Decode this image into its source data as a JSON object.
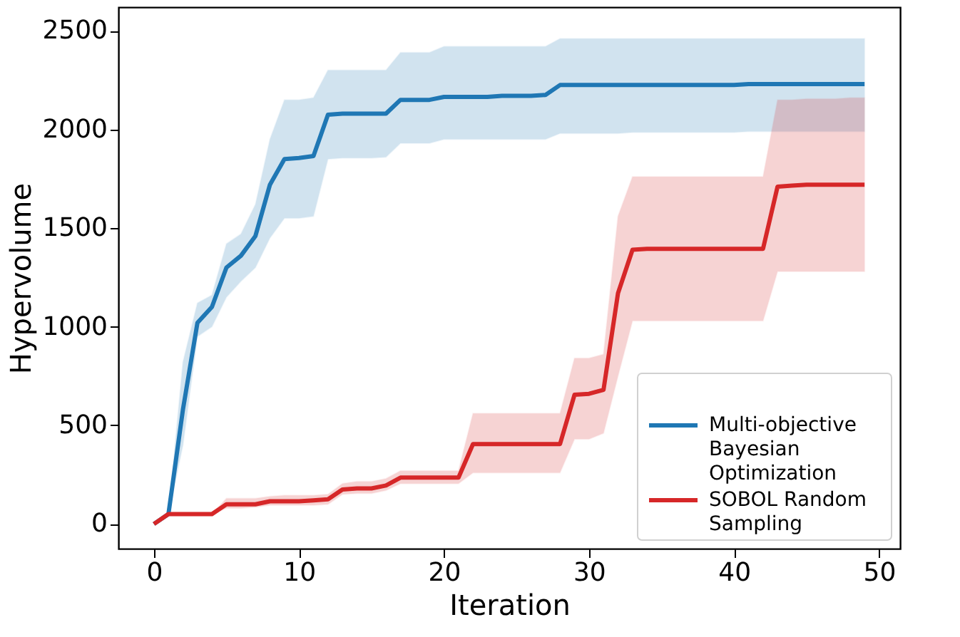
{
  "chart_data": {
    "type": "line",
    "xlabel": "Iteration",
    "ylabel": "Hypervolume",
    "x": [
      0,
      1,
      2,
      3,
      4,
      5,
      6,
      7,
      8,
      9,
      10,
      11,
      12,
      13,
      14,
      15,
      16,
      17,
      18,
      19,
      20,
      21,
      22,
      23,
      24,
      25,
      26,
      27,
      28,
      29,
      30,
      31,
      32,
      33,
      34,
      35,
      36,
      37,
      38,
      39,
      40,
      41,
      42,
      43,
      44,
      45,
      46,
      47,
      48,
      49
    ],
    "series": [
      {
        "name": "Multi-objective Bayesian Optimization",
        "color": "#1f77b4",
        "values": [
          0,
          50,
          580,
          1020,
          1100,
          1300,
          1360,
          1460,
          1720,
          1850,
          1855,
          1865,
          2075,
          2080,
          2080,
          2080,
          2080,
          2150,
          2150,
          2150,
          2165,
          2165,
          2165,
          2165,
          2170,
          2170,
          2170,
          2175,
          2225,
          2225,
          2225,
          2225,
          2225,
          2225,
          2225,
          2225,
          2225,
          2225,
          2225,
          2225,
          2225,
          2230,
          2230,
          2230,
          2230,
          2230,
          2230,
          2230,
          2230,
          2230
        ],
        "lower": [
          0,
          50,
          400,
          950,
          1000,
          1150,
          1230,
          1300,
          1450,
          1550,
          1550,
          1560,
          1850,
          1855,
          1855,
          1855,
          1860,
          1930,
          1930,
          1930,
          1950,
          1950,
          1950,
          1950,
          1950,
          1950,
          1950,
          1950,
          1980,
          1980,
          1980,
          1980,
          1980,
          1985,
          1985,
          1985,
          1985,
          1985,
          1985,
          1985,
          1985,
          1990,
          1990,
          1990,
          1990,
          1990,
          1990,
          1990,
          1990,
          1990
        ],
        "upper": [
          0,
          50,
          820,
          1120,
          1160,
          1420,
          1470,
          1620,
          1950,
          2150,
          2150,
          2160,
          2300,
          2300,
          2300,
          2300,
          2300,
          2390,
          2390,
          2390,
          2420,
          2420,
          2420,
          2420,
          2420,
          2420,
          2420,
          2420,
          2460,
          2460,
          2460,
          2460,
          2460,
          2460,
          2460,
          2460,
          2460,
          2460,
          2460,
          2460,
          2460,
          2460,
          2460,
          2460,
          2460,
          2460,
          2460,
          2460,
          2460,
          2460
        ]
      },
      {
        "name": "SOBOL Random Sampling",
        "color": "#d62728",
        "values": [
          0,
          50,
          50,
          50,
          50,
          100,
          100,
          100,
          115,
          115,
          115,
          120,
          125,
          175,
          180,
          180,
          195,
          235,
          235,
          235,
          235,
          235,
          405,
          405,
          405,
          405,
          405,
          405,
          405,
          655,
          660,
          680,
          1170,
          1390,
          1395,
          1395,
          1395,
          1395,
          1395,
          1395,
          1395,
          1395,
          1395,
          1710,
          1715,
          1720,
          1720,
          1720,
          1720,
          1720
        ],
        "lower": [
          0,
          50,
          50,
          50,
          50,
          80,
          80,
          85,
          95,
          95,
          95,
          95,
          100,
          150,
          155,
          155,
          170,
          205,
          205,
          205,
          205,
          205,
          260,
          260,
          260,
          260,
          260,
          260,
          260,
          430,
          430,
          460,
          750,
          1030,
          1030,
          1030,
          1030,
          1030,
          1030,
          1030,
          1030,
          1030,
          1030,
          1280,
          1280,
          1280,
          1280,
          1280,
          1280,
          1280
        ],
        "upper": [
          0,
          50,
          50,
          50,
          50,
          130,
          130,
          130,
          140,
          145,
          145,
          145,
          150,
          205,
          215,
          215,
          230,
          270,
          270,
          270,
          270,
          270,
          560,
          560,
          560,
          560,
          560,
          560,
          560,
          840,
          840,
          860,
          1560,
          1760,
          1760,
          1760,
          1760,
          1760,
          1760,
          1760,
          1760,
          1760,
          1760,
          2150,
          2150,
          2155,
          2155,
          2155,
          2160,
          2160
        ]
      }
    ],
    "xlim": [
      -2.45,
      51.45
    ],
    "ylim": [
      -125,
      2620
    ],
    "xticks": [
      0,
      10,
      20,
      30,
      40,
      50
    ],
    "yticks": [
      0,
      500,
      1000,
      1500,
      2000,
      2500
    ],
    "grid": false,
    "legend": "bottom right",
    "marker": "none",
    "line_style": "solid"
  }
}
